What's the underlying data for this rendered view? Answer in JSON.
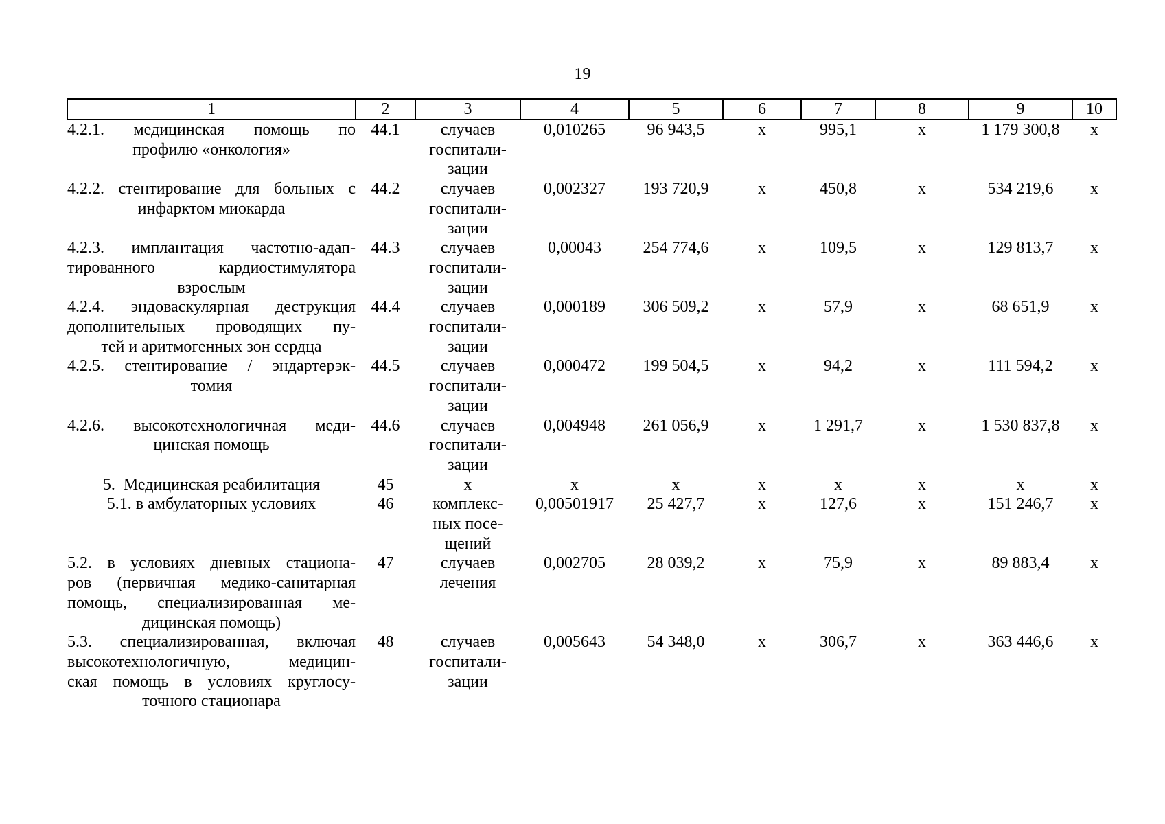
{
  "page": {
    "number": "19"
  },
  "table": {
    "column_headers": [
      "1",
      "2",
      "3",
      "4",
      "5",
      "6",
      "7",
      "8",
      "9",
      "10"
    ],
    "rows": [
      {
        "name_lines": [
          "4.2.1. медицинская помощь по",
          "профилю «онкология»"
        ],
        "code": "44.1",
        "unit_lines": [
          "случаев",
          "госпитали-",
          "зации"
        ],
        "values": [
          "0,010265",
          "96 943,5",
          "х",
          "995,1",
          "х",
          "1 179 300,8",
          "х"
        ]
      },
      {
        "name_lines": [
          "4.2.2. стентирование для больных с",
          "инфарктом миокарда"
        ],
        "code": "44.2",
        "unit_lines": [
          "случаев",
          "госпитали-",
          "зации"
        ],
        "values": [
          "0,002327",
          "193 720,9",
          "х",
          "450,8",
          "х",
          "534 219,6",
          "х"
        ]
      },
      {
        "name_lines": [
          "4.2.3. имплантация частотно-адап-",
          "тированного кардиостимулятора",
          "взрослым"
        ],
        "code": "44.3",
        "unit_lines": [
          "случаев",
          "госпитали-",
          "зации"
        ],
        "values": [
          "0,00043",
          "254 774,6",
          "х",
          "109,5",
          "х",
          "129 813,7",
          "х"
        ]
      },
      {
        "name_lines": [
          "4.2.4. эндоваскулярная деструкция",
          "дополнительных проводящих пу-",
          "тей и аритмогенных зон сердца"
        ],
        "code": "44.4",
        "unit_lines": [
          "случаев",
          "госпитали-",
          "зации"
        ],
        "values": [
          "0,000189",
          "306 509,2",
          "х",
          "57,9",
          "х",
          "68 651,9",
          "х"
        ]
      },
      {
        "name_lines": [
          "4.2.5. стентирование / эндартерэк-",
          "томия"
        ],
        "code": "44.5",
        "unit_lines": [
          "случаев",
          "госпитали-",
          "зации"
        ],
        "values": [
          "0,000472",
          "199 504,5",
          "х",
          "94,2",
          "х",
          "111 594,2",
          "х"
        ]
      },
      {
        "name_lines": [
          "4.2.6. высокотехнологичная меди-",
          "цинская помощь"
        ],
        "code": "44.6",
        "unit_lines": [
          "случаев",
          "госпитали-",
          "зации"
        ],
        "values": [
          "0,004948",
          "261 056,9",
          "х",
          "1 291,7",
          "х",
          "1 530 837,8",
          "х"
        ]
      },
      {
        "name_lines": [
          "5.  Медицинская реабилитация"
        ],
        "code": "45",
        "unit_lines": [
          "х"
        ],
        "values": [
          "х",
          "х",
          "х",
          "х",
          "х",
          "х",
          "х"
        ]
      },
      {
        "name_lines": [
          "5.1. в амбулаторных условиях"
        ],
        "code": "46",
        "unit_lines": [
          "комплекс-",
          "ных посе-",
          "щений"
        ],
        "values": [
          "0,00501917",
          "25 427,7",
          "х",
          "127,6",
          "х",
          "151 246,7",
          "х"
        ]
      },
      {
        "name_lines": [
          "5.2. в условиях дневных стациона-",
          "ров (первичная медико-санитарная",
          "помощь, специализированная ме-",
          "дицинская помощь)"
        ],
        "code": "47",
        "unit_lines": [
          "случаев",
          "лечения"
        ],
        "values": [
          "0,002705",
          "28 039,2",
          "х",
          "75,9",
          "х",
          "89 883,4",
          "х"
        ]
      },
      {
        "name_lines": [
          "5.3. специализированная, включая",
          "высокотехнологичную, медицин-",
          "ская помощь в условиях круглосу-",
          "точного стационара"
        ],
        "code": "48",
        "unit_lines": [
          "случаев",
          "госпитали-",
          "зации"
        ],
        "values": [
          "0,005643",
          "54 348,0",
          "х",
          "306,7",
          "х",
          "363 446,6",
          "х"
        ]
      }
    ]
  }
}
